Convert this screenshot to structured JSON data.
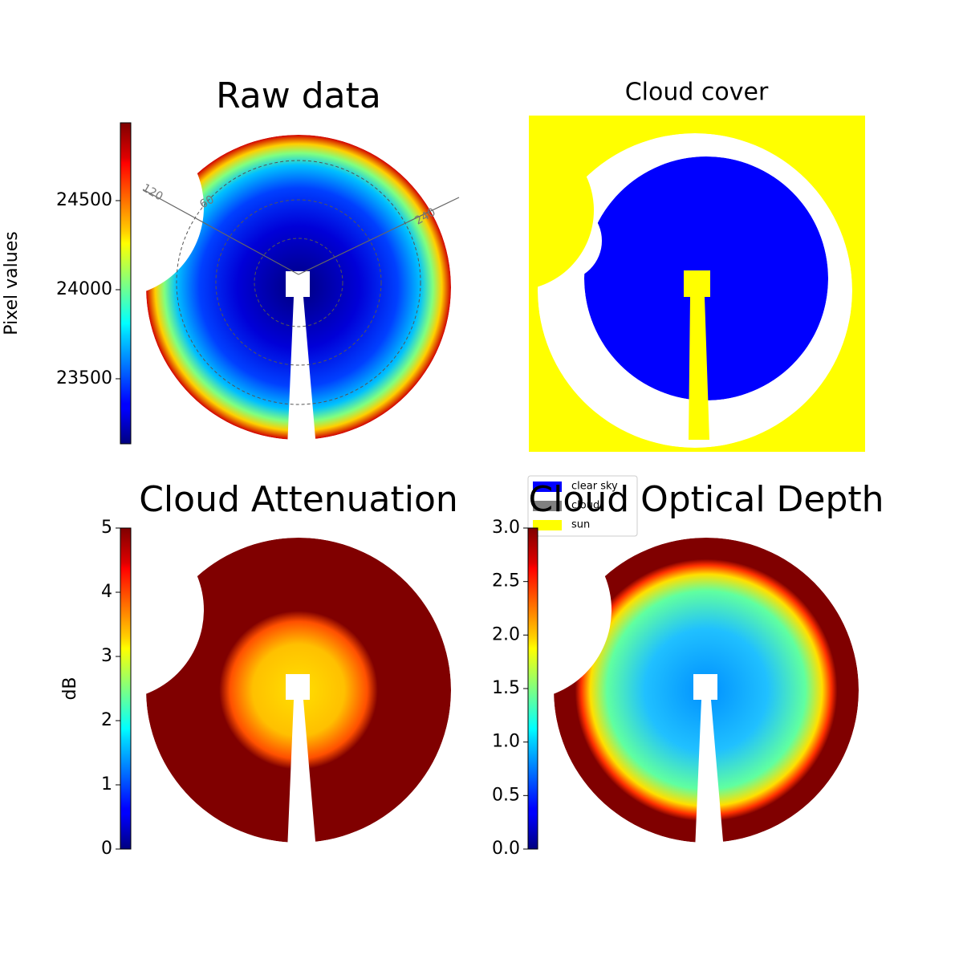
{
  "chart_data": [
    {
      "type": "image",
      "title": "Raw data",
      "colormap": "jet",
      "colorbar_label": "Pixel values",
      "ylim": [
        23135,
        24937
      ],
      "yticks": [
        23500,
        24000,
        24500
      ],
      "annotations": [
        "120",
        "60",
        "240"
      ]
    },
    {
      "type": "image",
      "title": "Cloud cover",
      "legend": [
        {
          "name": "clear sky",
          "color": "#0000ff"
        },
        {
          "name": "cloud",
          "color": "#808080"
        },
        {
          "name": "sun",
          "color": "#ffff00"
        }
      ]
    },
    {
      "type": "image",
      "title": "Cloud Attenuation",
      "colormap": "jet",
      "colorbar_label": "dB",
      "ylim": [
        0,
        5
      ],
      "yticks": [
        0,
        1,
        2,
        3,
        4,
        5
      ]
    },
    {
      "type": "image",
      "title": "Cloud Optical Depth",
      "colormap": "jet",
      "ylim": [
        0,
        3
      ],
      "yticks": [
        {
          "value": 0,
          "label": "0.0"
        },
        0.5,
        {
          "value": 1,
          "label": "1.0"
        },
        1.5,
        {
          "value": 2,
          "label": "2.0"
        },
        2.5,
        {
          "value": 3,
          "label": "3.0"
        }
      ]
    }
  ]
}
